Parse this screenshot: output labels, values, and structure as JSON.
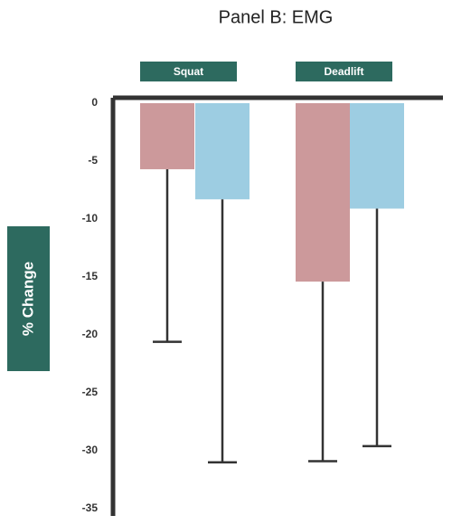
{
  "chart_data": {
    "type": "bar",
    "title": "Panel B: EMG",
    "y_label": "% Change",
    "categories": [
      "Squat",
      "Deadlift"
    ],
    "series": [
      {
        "color": "#cc999b",
        "values": [
          -5.7,
          -15.4
        ],
        "errors": [
          14.9,
          15.5
        ]
      },
      {
        "color": "#9dcde2",
        "values": [
          -8.3,
          -9.1
        ],
        "errors": [
          22.7,
          20.5
        ]
      }
    ],
    "ylim": [
      -35,
      0
    ],
    "yticks": [
      0,
      -5,
      -10,
      -15,
      -20,
      -25,
      -30,
      -35
    ],
    "label_color": "#2d6a5f"
  }
}
